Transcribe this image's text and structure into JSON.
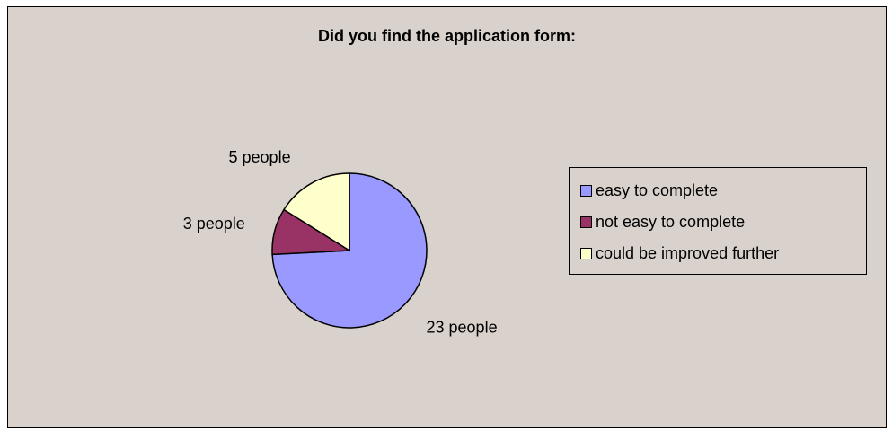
{
  "chart_data": {
    "type": "pie",
    "title": "Did you find the application form:",
    "categories": [
      "easy to complete",
      "not easy to complete",
      "could be improved further"
    ],
    "values": [
      23,
      3,
      5
    ],
    "data_labels": [
      "23 people",
      "3 people",
      "5 people"
    ],
    "colors": [
      "#9999ff",
      "#993366",
      "#ffffcc"
    ],
    "legend_position": "right"
  }
}
